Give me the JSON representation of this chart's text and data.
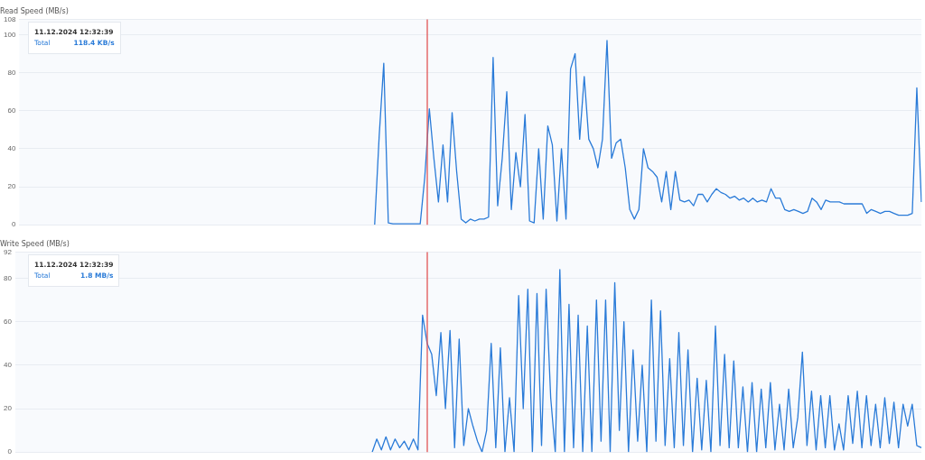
{
  "chart_data": [
    {
      "type": "line",
      "title": "Read Speed (MB/s)",
      "ylim": [
        0,
        108
      ],
      "yticks": [
        0,
        20,
        40,
        60,
        80,
        100,
        108
      ],
      "grid": "y",
      "legend": false,
      "tick_labels": "y",
      "marker": "none",
      "line_style": "solid",
      "categories": [
        null,
        null,
        null,
        null,
        null,
        null,
        null,
        null,
        null,
        null,
        null,
        null,
        null,
        null,
        null,
        null,
        null,
        null,
        null,
        null,
        null,
        null,
        null,
        null,
        null,
        null,
        null,
        null,
        null,
        null,
        null,
        null,
        null,
        null,
        null,
        null,
        null,
        null,
        null,
        null,
        null,
        null,
        null,
        null,
        null,
        null,
        null,
        null,
        null,
        null,
        null,
        null,
        null,
        null,
        null,
        null,
        null,
        null,
        null,
        null,
        null,
        null,
        null,
        null,
        null,
        null,
        null,
        null,
        null,
        null,
        null,
        null,
        null,
        null,
        null,
        null,
        null,
        null,
        null,
        null,
        null,
        null,
        null,
        null,
        null,
        null,
        null,
        null,
        null,
        null,
        null,
        null,
        null,
        null,
        null,
        null,
        null,
        null,
        null,
        null,
        null,
        null,
        null,
        null,
        null,
        null,
        null,
        null,
        null,
        null,
        null,
        null,
        null,
        null,
        null,
        null,
        null,
        null,
        null,
        null,
        null,
        null,
        null,
        null,
        null,
        null,
        null,
        null,
        null,
        null,
        null,
        null,
        null,
        null,
        null,
        null,
        null,
        null,
        null,
        null,
        null,
        null,
        null,
        null,
        null,
        null,
        null,
        null,
        null,
        null,
        null,
        null,
        null,
        null,
        null,
        null,
        null,
        null,
        null,
        null,
        null,
        null,
        null,
        null,
        null,
        null,
        null,
        null,
        null,
        null,
        null,
        null,
        null,
        null,
        null,
        null,
        null,
        null,
        null,
        null,
        null,
        null,
        null,
        null,
        null,
        null,
        null,
        null,
        null,
        null,
        null,
        null,
        null,
        null,
        null,
        null,
        null,
        null,
        null
      ],
      "annotations": [
        "11.12.2024 12:32:39",
        "Total",
        "118.4 KB/s"
      ],
      "series": [
        {
          "color": "#2a7bd8",
          "values": [
            null,
            null,
            null,
            null,
            null,
            null,
            null,
            null,
            null,
            null,
            null,
            null,
            null,
            null,
            null,
            null,
            null,
            null,
            null,
            null,
            null,
            null,
            null,
            null,
            null,
            null,
            null,
            null,
            null,
            null,
            null,
            null,
            null,
            null,
            null,
            null,
            null,
            null,
            null,
            null,
            null,
            null,
            null,
            null,
            null,
            null,
            null,
            null,
            null,
            null,
            null,
            null,
            null,
            null,
            null,
            null,
            null,
            null,
            null,
            null,
            null,
            null,
            null,
            null,
            null,
            null,
            null,
            null,
            null,
            null,
            null,
            null,
            null,
            null,
            null,
            null,
            null,
            null,
            0,
            47,
            85,
            1,
            0.5,
            0.5,
            0.5,
            0.5,
            0.5,
            0.5,
            0.5,
            25,
            61,
            35,
            12,
            42,
            12,
            59,
            28,
            3,
            1,
            3,
            2,
            3,
            3,
            4,
            88,
            10,
            35,
            70,
            8,
            38,
            20,
            58,
            2,
            1,
            40,
            3,
            52,
            42,
            2,
            40,
            3,
            82,
            90,
            45,
            78,
            45,
            40,
            30,
            45,
            97,
            35,
            43,
            45,
            30,
            8,
            3,
            8,
            40,
            30,
            28,
            25,
            12,
            28,
            8,
            28,
            13,
            12,
            13,
            10,
            16,
            16,
            12,
            16,
            19,
            17,
            16,
            14,
            15,
            13,
            14,
            12,
            14,
            12,
            13,
            12,
            19,
            14,
            14,
            8,
            7,
            8,
            7,
            6,
            7,
            14,
            12,
            8,
            13,
            12,
            12,
            12,
            11,
            11,
            11,
            11,
            11,
            6,
            8,
            7,
            6,
            7,
            7,
            6,
            5,
            5,
            5,
            6,
            72,
            12
          ]
        }
      ]
    },
    {
      "type": "line",
      "title": "Write Speed (MB/s)",
      "ylim": [
        0,
        92
      ],
      "yticks": [
        0,
        20,
        40,
        60,
        80,
        92
      ],
      "grid": "y",
      "legend": false,
      "tick_labels": "y",
      "marker": "none",
      "line_style": "solid",
      "categories": [
        null,
        null,
        null,
        null,
        null,
        null,
        null,
        null,
        null,
        null,
        null,
        null,
        null,
        null,
        null,
        null,
        null,
        null,
        null,
        null,
        null,
        null,
        null,
        null,
        null,
        null,
        null,
        null,
        null,
        null,
        null,
        null,
        null,
        null,
        null,
        null,
        null,
        null,
        null,
        null,
        null,
        null,
        null,
        null,
        null,
        null,
        null,
        null,
        null,
        null,
        null,
        null,
        null,
        null,
        null,
        null,
        null,
        null,
        null,
        null,
        null,
        null,
        null,
        null,
        null,
        null,
        null,
        null,
        null,
        null,
        null,
        null,
        null,
        null,
        null,
        null,
        null,
        null,
        null,
        null,
        null,
        null,
        null,
        null,
        null,
        null,
        null,
        null,
        null,
        null,
        null,
        null,
        null,
        null,
        null,
        null,
        null,
        null,
        null,
        null,
        null,
        null,
        null,
        null,
        null,
        null,
        null,
        null,
        null,
        null,
        null,
        null,
        null,
        null,
        null,
        null,
        null,
        null,
        null,
        null,
        null,
        null,
        null,
        null,
        null,
        null,
        null,
        null,
        null,
        null,
        null,
        null,
        null,
        null,
        null,
        null,
        null,
        null,
        null,
        null,
        null,
        null,
        null,
        null,
        null,
        null,
        null,
        null,
        null,
        null,
        null,
        null,
        null,
        null,
        null,
        null,
        null,
        null,
        null,
        null,
        null,
        null,
        null,
        null,
        null,
        null,
        null,
        null,
        null,
        null,
        null,
        null,
        null,
        null,
        null,
        null,
        null,
        null,
        null,
        null,
        null,
        null,
        null,
        null,
        null,
        null,
        null,
        null,
        null,
        null,
        null,
        null,
        null,
        null,
        null,
        null,
        null,
        null,
        null
      ],
      "annotations": [
        "11.12.2024 12:32:39",
        "Total",
        "1.8 MB/s"
      ],
      "series": [
        {
          "color": "#2a7bd8",
          "values": [
            null,
            null,
            null,
            null,
            null,
            null,
            null,
            null,
            null,
            null,
            null,
            null,
            null,
            null,
            null,
            null,
            null,
            null,
            null,
            null,
            null,
            null,
            null,
            null,
            null,
            null,
            null,
            null,
            null,
            null,
            null,
            null,
            null,
            null,
            null,
            null,
            null,
            null,
            null,
            null,
            null,
            null,
            null,
            null,
            null,
            null,
            null,
            null,
            null,
            null,
            null,
            null,
            null,
            null,
            null,
            null,
            null,
            null,
            null,
            null,
            null,
            null,
            null,
            null,
            null,
            null,
            null,
            null,
            null,
            null,
            null,
            null,
            null,
            null,
            null,
            null,
            null,
            null,
            0,
            6,
            1,
            7,
            1,
            6,
            2,
            5,
            1,
            6,
            1,
            63,
            50,
            45,
            26,
            55,
            20,
            56,
            2,
            52,
            3,
            20,
            12,
            5,
            0,
            10,
            50,
            2,
            48,
            0,
            25,
            0,
            72,
            20,
            75,
            0,
            73,
            3,
            75,
            25,
            0,
            84,
            0,
            68,
            2,
            63,
            0,
            58,
            0,
            70,
            5,
            70,
            0,
            78,
            10,
            60,
            0,
            47,
            5,
            40,
            0,
            70,
            5,
            65,
            3,
            43,
            2,
            55,
            3,
            47,
            0,
            34,
            1,
            33,
            0,
            58,
            3,
            45,
            2,
            42,
            2,
            30,
            0,
            32,
            0,
            29,
            2,
            32,
            1,
            22,
            1,
            29,
            2,
            16,
            46,
            3,
            28,
            1,
            26,
            2,
            26,
            1,
            13,
            1,
            26,
            4,
            28,
            2,
            26,
            3,
            22,
            2,
            25,
            4,
            23,
            2,
            22,
            12,
            22,
            3,
            2
          ]
        }
      ]
    }
  ]
}
